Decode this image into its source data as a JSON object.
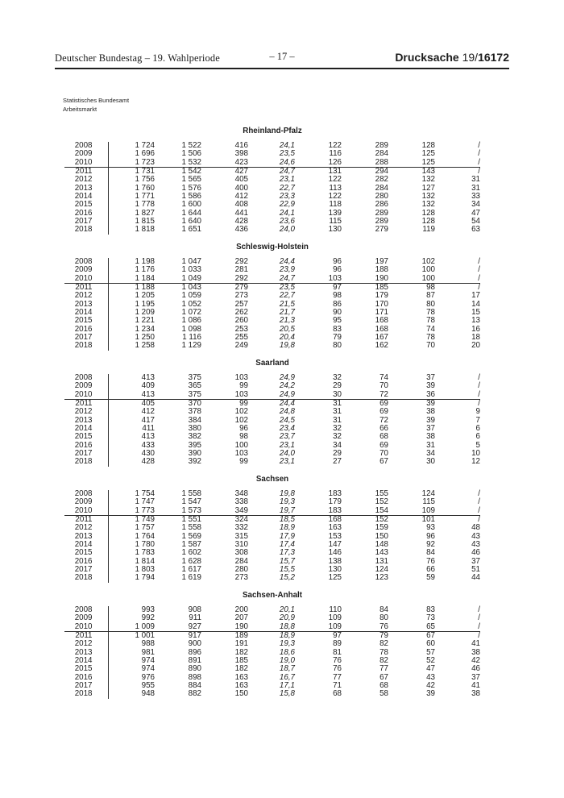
{
  "header": {
    "left": "Deutscher Bundestag – 19. Wahlperiode",
    "center": "– 17 –",
    "doc_label": "Drucksache",
    "doc_number_prefix": "19/",
    "doc_number_bold": "16172"
  },
  "source_block": {
    "line1": "Statistisches Bundesamt",
    "line2": "Arbeitsmarkt"
  },
  "tables": [
    {
      "title": "Rheinland-Pfalz",
      "rows": [
        [
          "2008",
          "1 724",
          "1 522",
          "416",
          "24,1",
          "122",
          "289",
          "128",
          "/"
        ],
        [
          "2009",
          "1 696",
          "1 506",
          "398",
          "23,5",
          "116",
          "284",
          "125",
          "/"
        ],
        [
          "2010",
          "1 723",
          "1 532",
          "423",
          "24,6",
          "126",
          "288",
          "125",
          "/"
        ],
        [
          "2011",
          "1 731",
          "1 542",
          "427",
          "24,7",
          "131",
          "294",
          "143",
          "/"
        ],
        [
          "2012",
          "1 756",
          "1 565",
          "405",
          "23,1",
          "122",
          "282",
          "132",
          "31"
        ],
        [
          "2013",
          "1 760",
          "1 576",
          "400",
          "22,7",
          "113",
          "284",
          "127",
          "31"
        ],
        [
          "2014",
          "1 771",
          "1 586",
          "412",
          "23,3",
          "122",
          "280",
          "132",
          "33"
        ],
        [
          "2015",
          "1 778",
          "1 600",
          "408",
          "22,9",
          "118",
          "286",
          "132",
          "34"
        ],
        [
          "2016",
          "1 827",
          "1 644",
          "441",
          "24,1",
          "139",
          "289",
          "128",
          "47"
        ],
        [
          "2017",
          "1 815",
          "1 640",
          "428",
          "23,6",
          "115",
          "289",
          "128",
          "54"
        ],
        [
          "2018",
          "1 818",
          "1 651",
          "436",
          "24,0",
          "130",
          "279",
          "119",
          "63"
        ]
      ]
    },
    {
      "title": "Schleswig-Holstein",
      "rows": [
        [
          "2008",
          "1 198",
          "1 047",
          "292",
          "24,4",
          "96",
          "197",
          "102",
          "/"
        ],
        [
          "2009",
          "1 176",
          "1 033",
          "281",
          "23,9",
          "96",
          "188",
          "100",
          "/"
        ],
        [
          "2010",
          "1 184",
          "1 049",
          "292",
          "24,7",
          "103",
          "190",
          "100",
          "/"
        ],
        [
          "2011",
          "1 188",
          "1 043",
          "279",
          "23,5",
          "97",
          "185",
          "98",
          "/"
        ],
        [
          "2012",
          "1 205",
          "1 059",
          "273",
          "22,7",
          "98",
          "179",
          "87",
          "17"
        ],
        [
          "2013",
          "1 195",
          "1 052",
          "257",
          "21,5",
          "86",
          "170",
          "80",
          "14"
        ],
        [
          "2014",
          "1 209",
          "1 072",
          "262",
          "21,7",
          "90",
          "171",
          "78",
          "15"
        ],
        [
          "2015",
          "1 221",
          "1 086",
          "260",
          "21,3",
          "95",
          "168",
          "78",
          "13"
        ],
        [
          "2016",
          "1 234",
          "1 098",
          "253",
          "20,5",
          "83",
          "168",
          "74",
          "16"
        ],
        [
          "2017",
          "1 250",
          "1 116",
          "255",
          "20,4",
          "79",
          "167",
          "78",
          "18"
        ],
        [
          "2018",
          "1 258",
          "1 129",
          "249",
          "19,8",
          "80",
          "162",
          "70",
          "20"
        ]
      ]
    },
    {
      "title": "Saarland",
      "rows": [
        [
          "2008",
          "413",
          "375",
          "103",
          "24,9",
          "32",
          "74",
          "37",
          "/"
        ],
        [
          "2009",
          "409",
          "365",
          "99",
          "24,2",
          "29",
          "70",
          "39",
          "/"
        ],
        [
          "2010",
          "413",
          "375",
          "103",
          "24,9",
          "30",
          "72",
          "36",
          "/"
        ],
        [
          "2011",
          "405",
          "370",
          "99",
          "24,4",
          "31",
          "69",
          "39",
          "/"
        ],
        [
          "2012",
          "412",
          "378",
          "102",
          "24,8",
          "31",
          "69",
          "38",
          "9"
        ],
        [
          "2013",
          "417",
          "384",
          "102",
          "24,5",
          "31",
          "72",
          "39",
          "7"
        ],
        [
          "2014",
          "411",
          "380",
          "96",
          "23,4",
          "32",
          "66",
          "37",
          "6"
        ],
        [
          "2015",
          "413",
          "382",
          "98",
          "23,7",
          "32",
          "68",
          "38",
          "6"
        ],
        [
          "2016",
          "433",
          "395",
          "100",
          "23,1",
          "34",
          "69",
          "31",
          "5"
        ],
        [
          "2017",
          "430",
          "390",
          "103",
          "24,0",
          "29",
          "70",
          "34",
          "10"
        ],
        [
          "2018",
          "428",
          "392",
          "99",
          "23,1",
          "27",
          "67",
          "30",
          "12"
        ]
      ]
    },
    {
      "title": "Sachsen",
      "rows": [
        [
          "2008",
          "1 754",
          "1 558",
          "348",
          "19,8",
          "183",
          "155",
          "124",
          "/"
        ],
        [
          "2009",
          "1 747",
          "1 547",
          "338",
          "19,3",
          "179",
          "152",
          "115",
          "/"
        ],
        [
          "2010",
          "1 773",
          "1 573",
          "349",
          "19,7",
          "183",
          "154",
          "109",
          "/"
        ],
        [
          "2011",
          "1 749",
          "1 551",
          "324",
          "18,5",
          "168",
          "152",
          "101",
          "/"
        ],
        [
          "2012",
          "1 757",
          "1 558",
          "332",
          "18,9",
          "163",
          "159",
          "93",
          "48"
        ],
        [
          "2013",
          "1 764",
          "1 569",
          "315",
          "17,9",
          "153",
          "150",
          "96",
          "43"
        ],
        [
          "2014",
          "1 780",
          "1 587",
          "310",
          "17,4",
          "147",
          "148",
          "92",
          "43"
        ],
        [
          "2015",
          "1 783",
          "1 602",
          "308",
          "17,3",
          "146",
          "143",
          "84",
          "46"
        ],
        [
          "2016",
          "1 814",
          "1 628",
          "284",
          "15,7",
          "138",
          "131",
          "76",
          "37"
        ],
        [
          "2017",
          "1 803",
          "1 617",
          "280",
          "15,5",
          "130",
          "124",
          "66",
          "51"
        ],
        [
          "2018",
          "1 794",
          "1 619",
          "273",
          "15,2",
          "125",
          "123",
          "59",
          "44"
        ]
      ]
    },
    {
      "title": "Sachsen-Anhalt",
      "rows": [
        [
          "2008",
          "993",
          "908",
          "200",
          "20,1",
          "110",
          "84",
          "83",
          "/"
        ],
        [
          "2009",
          "992",
          "911",
          "207",
          "20,9",
          "109",
          "80",
          "73",
          "/"
        ],
        [
          "2010",
          "1 009",
          "927",
          "190",
          "18,8",
          "109",
          "76",
          "65",
          "/"
        ],
        [
          "2011",
          "1 001",
          "917",
          "189",
          "18,9",
          "97",
          "79",
          "67",
          "/"
        ],
        [
          "2012",
          "988",
          "900",
          "191",
          "19,3",
          "89",
          "82",
          "60",
          "41"
        ],
        [
          "2013",
          "981",
          "896",
          "182",
          "18,6",
          "81",
          "78",
          "57",
          "38"
        ],
        [
          "2014",
          "974",
          "891",
          "185",
          "19,0",
          "76",
          "82",
          "52",
          "42"
        ],
        [
          "2015",
          "974",
          "890",
          "182",
          "18,7",
          "76",
          "77",
          "47",
          "46"
        ],
        [
          "2016",
          "976",
          "898",
          "163",
          "16,7",
          "77",
          "67",
          "43",
          "37"
        ],
        [
          "2017",
          "955",
          "884",
          "163",
          "17,1",
          "71",
          "68",
          "42",
          "41"
        ],
        [
          "2018",
          "948",
          "882",
          "150",
          "15,8",
          "68",
          "58",
          "39",
          "38"
        ]
      ]
    }
  ]
}
